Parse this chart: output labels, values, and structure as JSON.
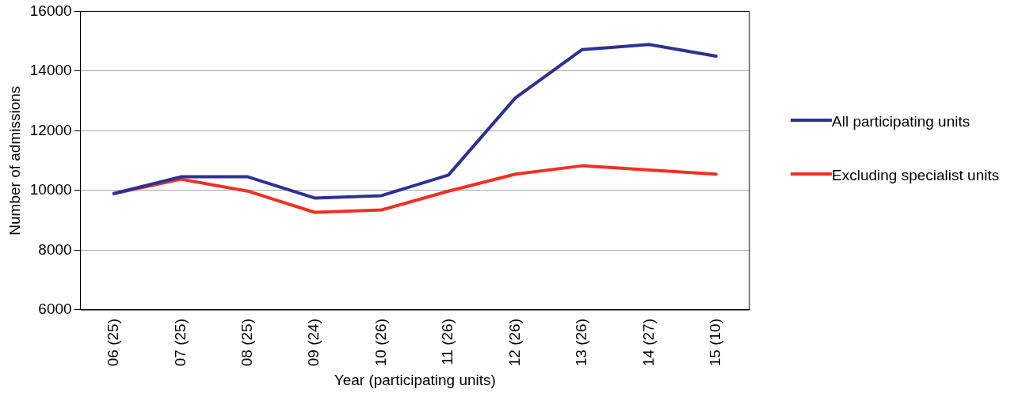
{
  "chart_data": {
    "type": "line",
    "xlabel": "Year (participating units)",
    "ylabel": "Number of admissions",
    "categories": [
      "06 (25)",
      "07 (25)",
      "08 (25)",
      "09 (24)",
      "10 (26)",
      "11 (26)",
      "12 (26)",
      "13 (26)",
      "14 (27)",
      "15 (10)"
    ],
    "series": [
      {
        "name": "All participating units",
        "color": "#2e3192",
        "values": [
          9900,
          10460,
          10460,
          9750,
          9830,
          10520,
          13100,
          14720,
          14890,
          14500
        ]
      },
      {
        "name": "Excluding specialist units",
        "color": "#ee3124",
        "values": [
          9900,
          10380,
          9980,
          9270,
          9350,
          9980,
          10550,
          10830,
          10690,
          10550
        ]
      }
    ],
    "ylim": [
      6000,
      16000
    ],
    "yticks": [
      6000,
      8000,
      10000,
      12000,
      14000,
      16000
    ],
    "grid": "y",
    "legend": "right",
    "marker": "none",
    "line_style": "solid"
  }
}
